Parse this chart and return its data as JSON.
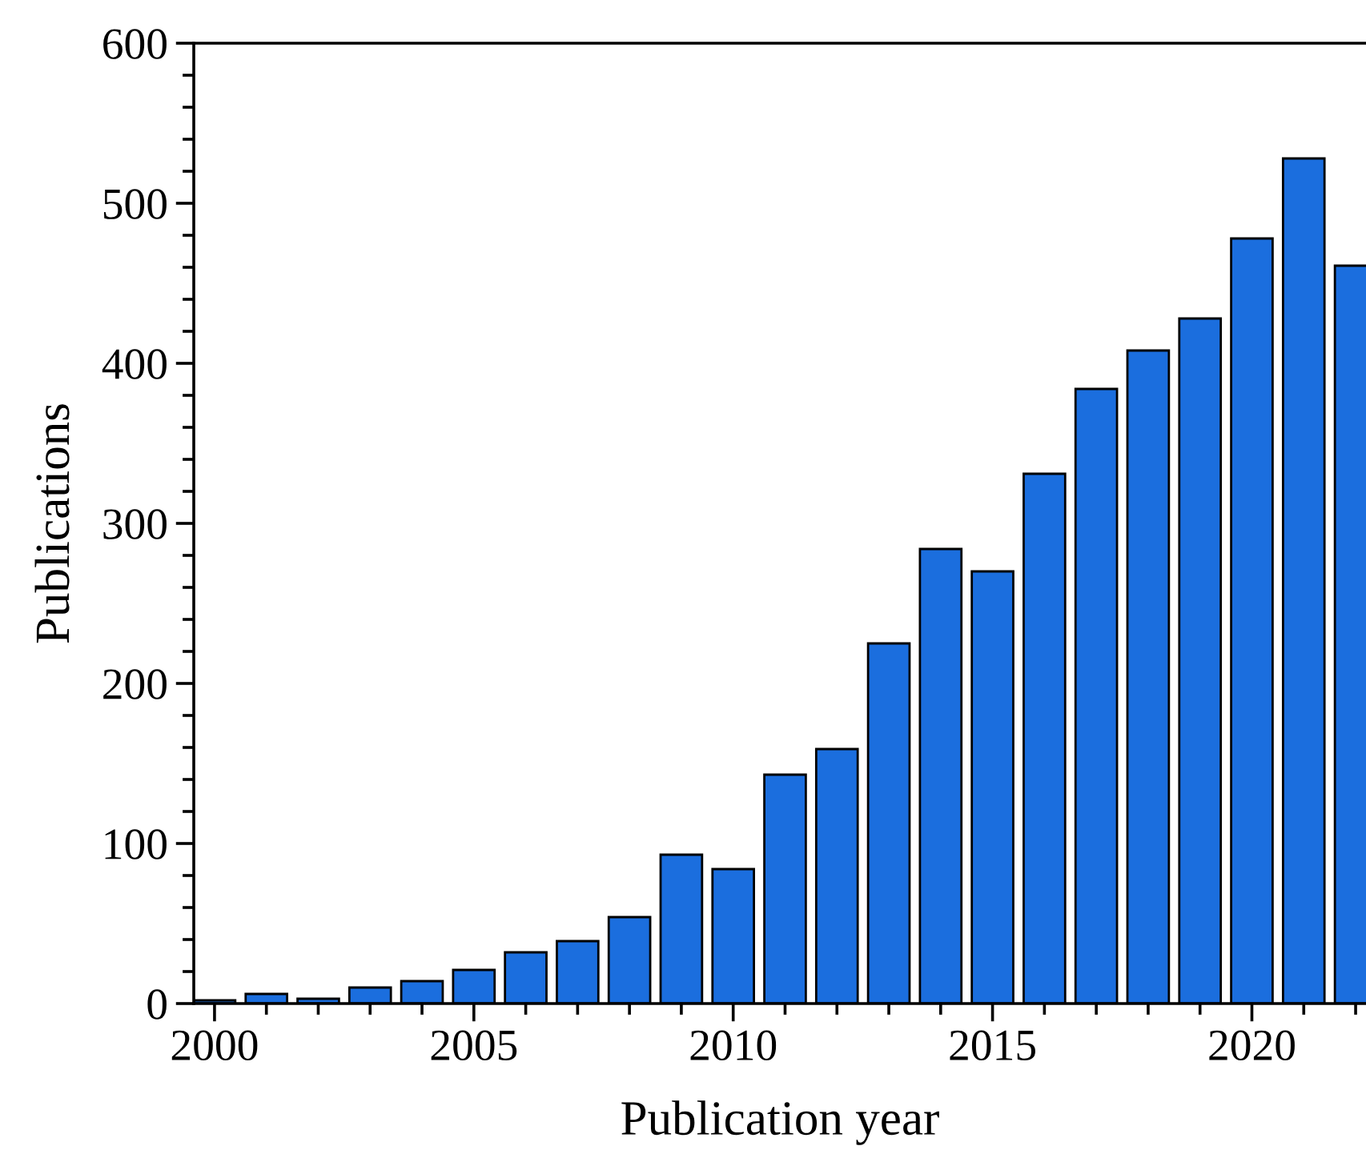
{
  "chart_data": {
    "type": "bar",
    "xlabel": "Publication year",
    "ylabel": "Publications",
    "x": [
      2000,
      2001,
      2002,
      2003,
      2004,
      2005,
      2006,
      2007,
      2008,
      2009,
      2010,
      2011,
      2012,
      2013,
      2014,
      2015,
      2016,
      2017,
      2018,
      2019,
      2020,
      2021,
      2022
    ],
    "values": [
      2,
      6,
      3,
      10,
      14,
      21,
      32,
      39,
      54,
      93,
      84,
      143,
      159,
      225,
      284,
      270,
      331,
      384,
      408,
      428,
      478,
      528,
      461
    ],
    "color": "#1b6ede",
    "xlim": [
      1999.6,
      2022.2
    ],
    "xticks": [
      2000,
      2005,
      2010,
      2015,
      2020
    ],
    "ylim": [
      0,
      600
    ],
    "yticks": [
      0,
      100,
      200,
      300,
      400,
      500,
      600
    ],
    "grid": false,
    "legend": false
  }
}
